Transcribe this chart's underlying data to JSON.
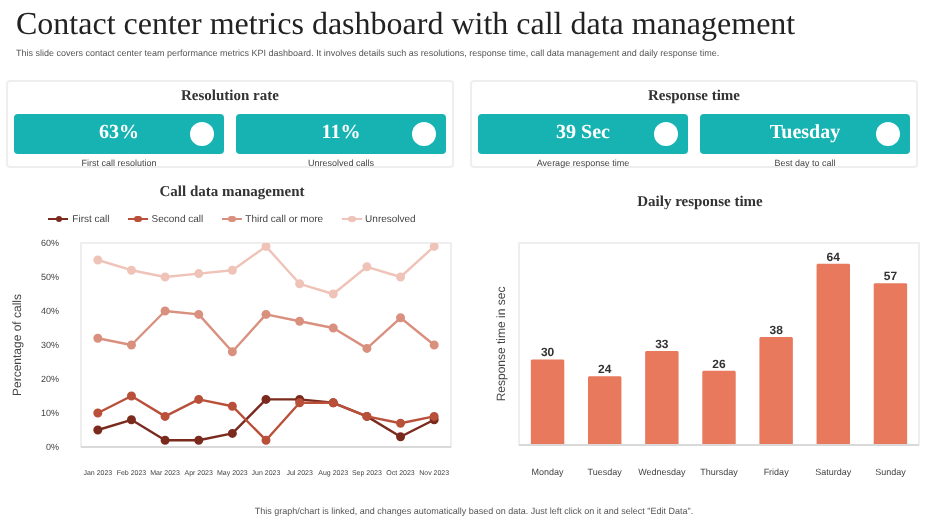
{
  "chart_data": [
    {
      "type": "other",
      "title": "Contact center metrics dashboard with call data management",
      "subtitle": "This slide covers contact center team performance metrics KPI dashboard. It involves details such as resolutions, response time, call data management and daily response time.",
      "annotations": [
        "This graph/chart is linked, and changes automatically based on data. Just left click on it and select \"Edit Data\"."
      ]
    },
    {
      "type": "other",
      "title": "Resolution rate",
      "annotations": [
        "63%",
        "First call resolution",
        "11%",
        "Unresolved  calls"
      ]
    },
    {
      "type": "other",
      "title": "Response time",
      "annotations": [
        "39 Sec",
        "Average  response time",
        "Tuesday",
        "Best day to call"
      ]
    },
    {
      "type": "line",
      "title": "Call data management",
      "ylabel": "Percentage of calls",
      "categories": [
        "Jan 2023",
        "Feb 2023",
        "Mar 2023",
        "Apr 2023",
        "May 2023",
        "Jun 2023",
        "Jul 2023",
        "Aug 2023",
        "Sep 2023",
        "Oct 2023",
        "Nov 2023"
      ],
      "ylim": [
        0,
        60
      ],
      "yticks": [
        {
          "value": 0,
          "label": "0%"
        },
        {
          "value": 10,
          "label": "10%"
        },
        {
          "value": 20,
          "label": "20%"
        },
        {
          "value": 30,
          "label": "30%"
        },
        {
          "value": 40,
          "label": "40%"
        },
        {
          "value": 50,
          "label": "50%"
        },
        {
          "value": 60,
          "label": "60%"
        }
      ],
      "marker": "circle",
      "legend": "top",
      "series": [
        {
          "name": "First call",
          "color": "#7b2a1e",
          "values": [
            5,
            8,
            2,
            2,
            4,
            14,
            14,
            13,
            9,
            3,
            8
          ]
        },
        {
          "name": "Second call",
          "color": "#b9503a",
          "values": [
            10,
            15,
            9,
            14,
            12,
            2,
            13,
            13,
            9,
            7,
            9
          ]
        },
        {
          "name": "Third call or more",
          "color": "#d9907e",
          "values": [
            32,
            30,
            40,
            39,
            28,
            39,
            37,
            35,
            29,
            38,
            30
          ]
        },
        {
          "name": "Unresolved",
          "color": "#efc3b8",
          "values": [
            55,
            52,
            50,
            51,
            52,
            59,
            48,
            45,
            53,
            50,
            59
          ]
        }
      ]
    },
    {
      "type": "bar",
      "title": "Daily response time",
      "ylabel": "Response time in sec",
      "categories": [
        "Monday",
        "Tuesday",
        "Wednesday",
        "Thursday",
        "Friday",
        "Saturday",
        "Sunday"
      ],
      "values": [
        30,
        24,
        33,
        26,
        38,
        64,
        57
      ],
      "color": "#e8795d",
      "data_labels": true
    }
  ]
}
